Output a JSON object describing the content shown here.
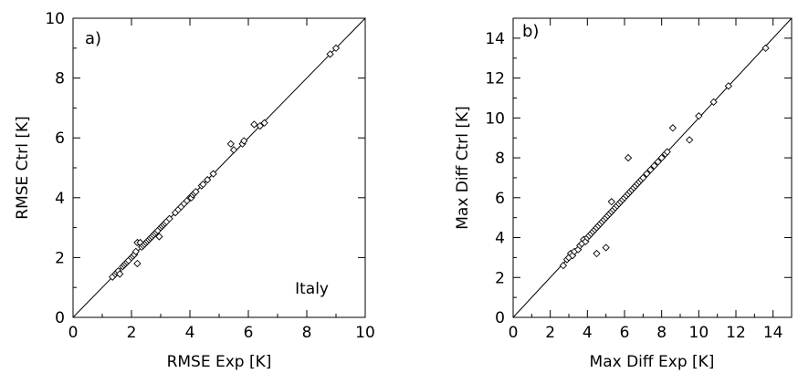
{
  "chart_data": [
    {
      "type": "scatter",
      "panel_label": "a)",
      "annotation": "Italy",
      "xlabel": "RMSE Exp [K]",
      "ylabel": "RMSE Ctrl [K]",
      "xlim": [
        0,
        10
      ],
      "ylim": [
        0,
        10
      ],
      "xticks": [
        "0",
        "2",
        "4",
        "6",
        "8",
        "10"
      ],
      "yticks": [
        "0",
        "2",
        "4",
        "6",
        "8",
        "10"
      ],
      "reference_line": "y = x",
      "marker": "diamond",
      "grid": false,
      "points": [
        [
          1.35,
          1.35
        ],
        [
          1.45,
          1.45
        ],
        [
          1.5,
          1.5
        ],
        [
          1.55,
          1.55
        ],
        [
          1.6,
          1.45
        ],
        [
          1.7,
          1.7
        ],
        [
          1.75,
          1.75
        ],
        [
          1.8,
          1.8
        ],
        [
          1.85,
          1.85
        ],
        [
          1.9,
          1.9
        ],
        [
          2.0,
          2.0
        ],
        [
          2.05,
          2.05
        ],
        [
          2.1,
          2.1
        ],
        [
          2.15,
          2.2
        ],
        [
          2.2,
          2.5
        ],
        [
          2.3,
          2.5
        ],
        [
          2.2,
          1.8
        ],
        [
          2.35,
          2.35
        ],
        [
          2.4,
          2.4
        ],
        [
          2.45,
          2.45
        ],
        [
          2.5,
          2.5
        ],
        [
          2.55,
          2.55
        ],
        [
          2.6,
          2.6
        ],
        [
          2.65,
          2.65
        ],
        [
          2.7,
          2.7
        ],
        [
          2.75,
          2.75
        ],
        [
          2.8,
          2.8
        ],
        [
          2.85,
          2.85
        ],
        [
          2.9,
          2.9
        ],
        [
          2.95,
          2.7
        ],
        [
          3.0,
          3.0
        ],
        [
          3.05,
          3.05
        ],
        [
          3.1,
          3.1
        ],
        [
          3.15,
          3.15
        ],
        [
          3.2,
          3.2
        ],
        [
          3.3,
          3.3
        ],
        [
          3.5,
          3.5
        ],
        [
          3.6,
          3.6
        ],
        [
          3.7,
          3.7
        ],
        [
          3.8,
          3.8
        ],
        [
          3.9,
          3.9
        ],
        [
          4.0,
          4.0
        ],
        [
          4.05,
          4.0
        ],
        [
          4.1,
          4.1
        ],
        [
          4.15,
          4.15
        ],
        [
          4.2,
          4.2
        ],
        [
          4.4,
          4.4
        ],
        [
          4.45,
          4.45
        ],
        [
          4.6,
          4.6
        ],
        [
          4.8,
          4.8
        ],
        [
          5.4,
          5.8
        ],
        [
          5.5,
          5.6
        ],
        [
          5.8,
          5.8
        ],
        [
          5.85,
          5.9
        ],
        [
          6.2,
          6.45
        ],
        [
          6.4,
          6.4
        ],
        [
          6.55,
          6.5
        ],
        [
          8.8,
          8.8
        ],
        [
          9.0,
          9.0
        ]
      ]
    },
    {
      "type": "scatter",
      "panel_label": "b)",
      "xlabel": "Max Diff Exp [K]",
      "ylabel": "Max Diff Ctrl [K]",
      "xlim": [
        0,
        15
      ],
      "ylim": [
        0,
        15
      ],
      "xticks": [
        "0",
        "2",
        "4",
        "6",
        "8",
        "10",
        "12",
        "14"
      ],
      "yticks": [
        "0",
        "2",
        "4",
        "6",
        "8",
        "10",
        "12",
        "14"
      ],
      "reference_line": "y = x",
      "marker": "diamond",
      "grid": false,
      "points": [
        [
          2.7,
          2.6
        ],
        [
          2.9,
          2.9
        ],
        [
          3.0,
          3.0
        ],
        [
          3.1,
          3.2
        ],
        [
          3.2,
          3.1
        ],
        [
          3.3,
          3.3
        ],
        [
          3.5,
          3.4
        ],
        [
          3.6,
          3.6
        ],
        [
          3.7,
          3.7
        ],
        [
          3.8,
          3.9
        ],
        [
          3.9,
          3.8
        ],
        [
          4.0,
          4.0
        ],
        [
          4.1,
          4.1
        ],
        [
          4.2,
          4.2
        ],
        [
          4.3,
          4.3
        ],
        [
          4.4,
          4.4
        ],
        [
          4.5,
          4.5
        ],
        [
          4.6,
          4.6
        ],
        [
          4.7,
          4.7
        ],
        [
          4.8,
          4.8
        ],
        [
          4.9,
          4.9
        ],
        [
          5.0,
          5.0
        ],
        [
          5.1,
          5.1
        ],
        [
          5.2,
          5.2
        ],
        [
          5.3,
          5.3
        ],
        [
          5.4,
          5.4
        ],
        [
          5.5,
          5.5
        ],
        [
          5.6,
          5.6
        ],
        [
          5.7,
          5.7
        ],
        [
          5.8,
          5.8
        ],
        [
          5.9,
          5.9
        ],
        [
          6.0,
          6.0
        ],
        [
          6.1,
          6.1
        ],
        [
          6.2,
          6.2
        ],
        [
          6.3,
          6.3
        ],
        [
          6.4,
          6.4
        ],
        [
          6.5,
          6.5
        ],
        [
          6.6,
          6.6
        ],
        [
          6.7,
          6.7
        ],
        [
          6.8,
          6.8
        ],
        [
          6.9,
          6.9
        ],
        [
          7.0,
          7.0
        ],
        [
          7.2,
          7.2
        ],
        [
          7.4,
          7.4
        ],
        [
          7.6,
          7.6
        ],
        [
          7.8,
          7.8
        ],
        [
          8.0,
          8.0
        ],
        [
          8.2,
          8.2
        ],
        [
          8.3,
          8.3
        ],
        [
          4.5,
          3.2
        ],
        [
          5.0,
          3.5
        ],
        [
          5.3,
          5.8
        ],
        [
          6.2,
          8.0
        ],
        [
          8.6,
          9.5
        ],
        [
          9.5,
          8.9
        ],
        [
          10.0,
          10.1
        ],
        [
          10.8,
          10.8
        ],
        [
          11.6,
          11.6
        ],
        [
          13.6,
          13.5
        ]
      ]
    }
  ]
}
